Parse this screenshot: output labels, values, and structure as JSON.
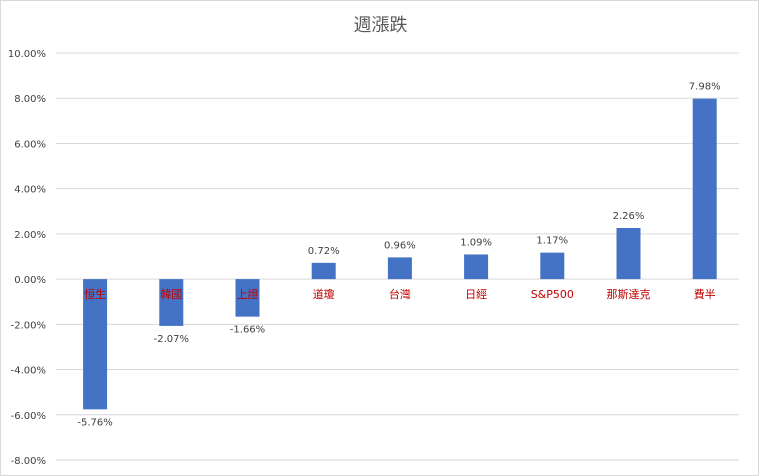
{
  "chart_data": {
    "type": "bar",
    "title": "週漲跌",
    "xlabel": "",
    "ylabel": "",
    "categories": [
      "恒生",
      "韓國",
      "上證",
      "道瓊",
      "台灣",
      "日經",
      "S&P500",
      "那斯達克",
      "費半"
    ],
    "values": [
      -5.76,
      -2.07,
      -1.66,
      0.72,
      0.96,
      1.09,
      1.17,
      2.26,
      7.98
    ],
    "data_labels": [
      "-5.76%",
      "-2.07%",
      "-1.66%",
      "0.72%",
      "0.96%",
      "1.09%",
      "1.17%",
      "2.26%",
      "7.98%"
    ],
    "ylim": [
      -8,
      10
    ],
    "yticks": [
      10,
      8,
      6,
      4,
      2,
      0,
      -2,
      -4,
      -6,
      -8
    ],
    "ytick_labels": [
      "10.00%",
      "8.00%",
      "6.00%",
      "4.00%",
      "2.00%",
      "0.00%",
      "-2.00%",
      "-4.00%",
      "-6.00%",
      "-8.00%"
    ],
    "grid": true,
    "legend": "none",
    "colors": {
      "bar": "#4472c4",
      "category_label": "#c00000",
      "grid": "#d9d9d9",
      "text": "#404040",
      "title": "#595959"
    }
  }
}
